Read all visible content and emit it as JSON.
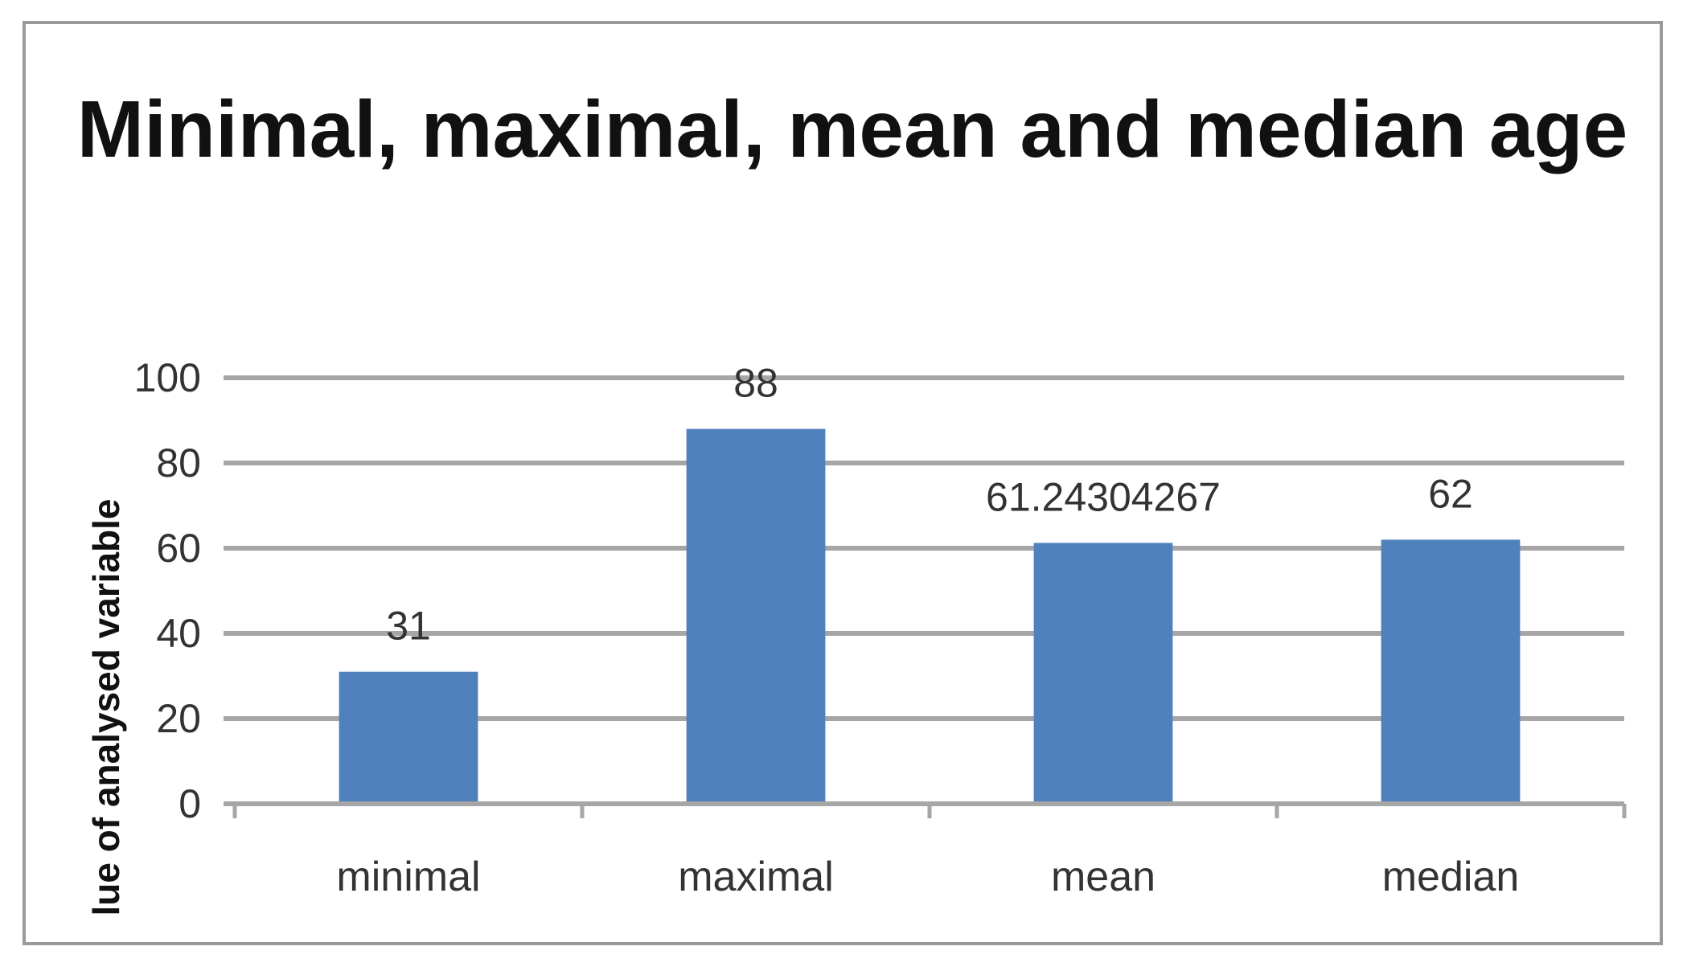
{
  "chart_data": {
    "type": "bar",
    "title": "Minimal, maximal, mean and median age",
    "ylabel": "lue of analysed variable",
    "xlabel": "",
    "categories": [
      "minimal",
      "maximal",
      "mean",
      "median"
    ],
    "values": [
      31,
      88,
      61.24304267,
      62
    ],
    "data_labels": [
      "31",
      "88",
      "61.24304267",
      "62"
    ],
    "ylim": [
      0,
      100
    ],
    "yticks": [
      "0",
      "20",
      "40",
      "60",
      "80",
      "100"
    ],
    "grid": true,
    "legend": "none",
    "bar_color": "#4f81bd",
    "grid_color": "#a6a6a6"
  }
}
